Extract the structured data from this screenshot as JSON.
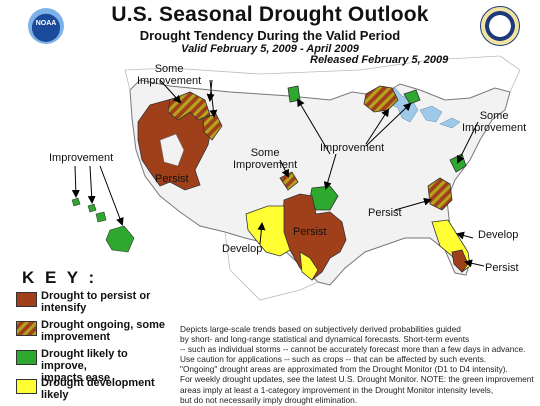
{
  "header": {
    "title": "U.S. Seasonal Drought Outlook",
    "subtitle": "Drought Tendency During the Valid Period",
    "valid": "Valid February 5, 2009 - April 2009",
    "released": "Released February 5, 2009"
  },
  "logos": {
    "noaa": "NOAA",
    "commerce": "seal-icon"
  },
  "map": {
    "labels": {
      "some_improvement_west": [
        "Some",
        "Improvement"
      ],
      "improvement_hawaii": "Improvement",
      "persist_west": "Persist",
      "some_improvement_co": [
        "Some",
        "Improvement"
      ],
      "improvement_plains": "Improvement",
      "some_improvement_ne": [
        "Some",
        "Improvement"
      ],
      "persist_se": "Persist",
      "develop_east": "Develop",
      "persist_fl": "Persist",
      "develop_sw": "Develop",
      "persist_tx": "Persist"
    }
  },
  "key": {
    "title": "K E Y :",
    "items": [
      {
        "label": [
          "Drought to persist or",
          "intensify"
        ],
        "color": "#A0401A"
      },
      {
        "label": [
          "Drought ongoing, some",
          "improvement"
        ],
        "color": "#A0401A"
      },
      {
        "label": [
          "Drought likely to improve,",
          "impacts ease"
        ],
        "color": "#2EA82E"
      },
      {
        "label": [
          "Drought development",
          "likely"
        ],
        "color": "#FFFF33"
      }
    ]
  },
  "notes": [
    "Depicts large-scale trends based on subjectively derived probabilities guided",
    "by short- and long-range statistical and dynamical forecasts. Short-term events",
    "-- such as individual storms -- cannot be accurately forecast more than a few days in advance.",
    "Use caution for applications -- such as crops -- that can be affected by such events.",
    "\"Ongoing\" drought areas are approximated from the Drought Monitor (D1 to D4 intensity).",
    "For weekly drought updates, see the latest U.S. Drought Monitor. NOTE: the green improvement",
    "areas imply at least a 1-category improvement in the Drought Monitor intensity levels,",
    "but do not necessarily imply drought elimination."
  ],
  "colors": {
    "persist": "#A0401A",
    "improve": "#2EA82E",
    "develop": "#FFFF33",
    "hatch": "#B5A21E",
    "land": "#F2F2F2",
    "lake": "#9FC9E8"
  }
}
